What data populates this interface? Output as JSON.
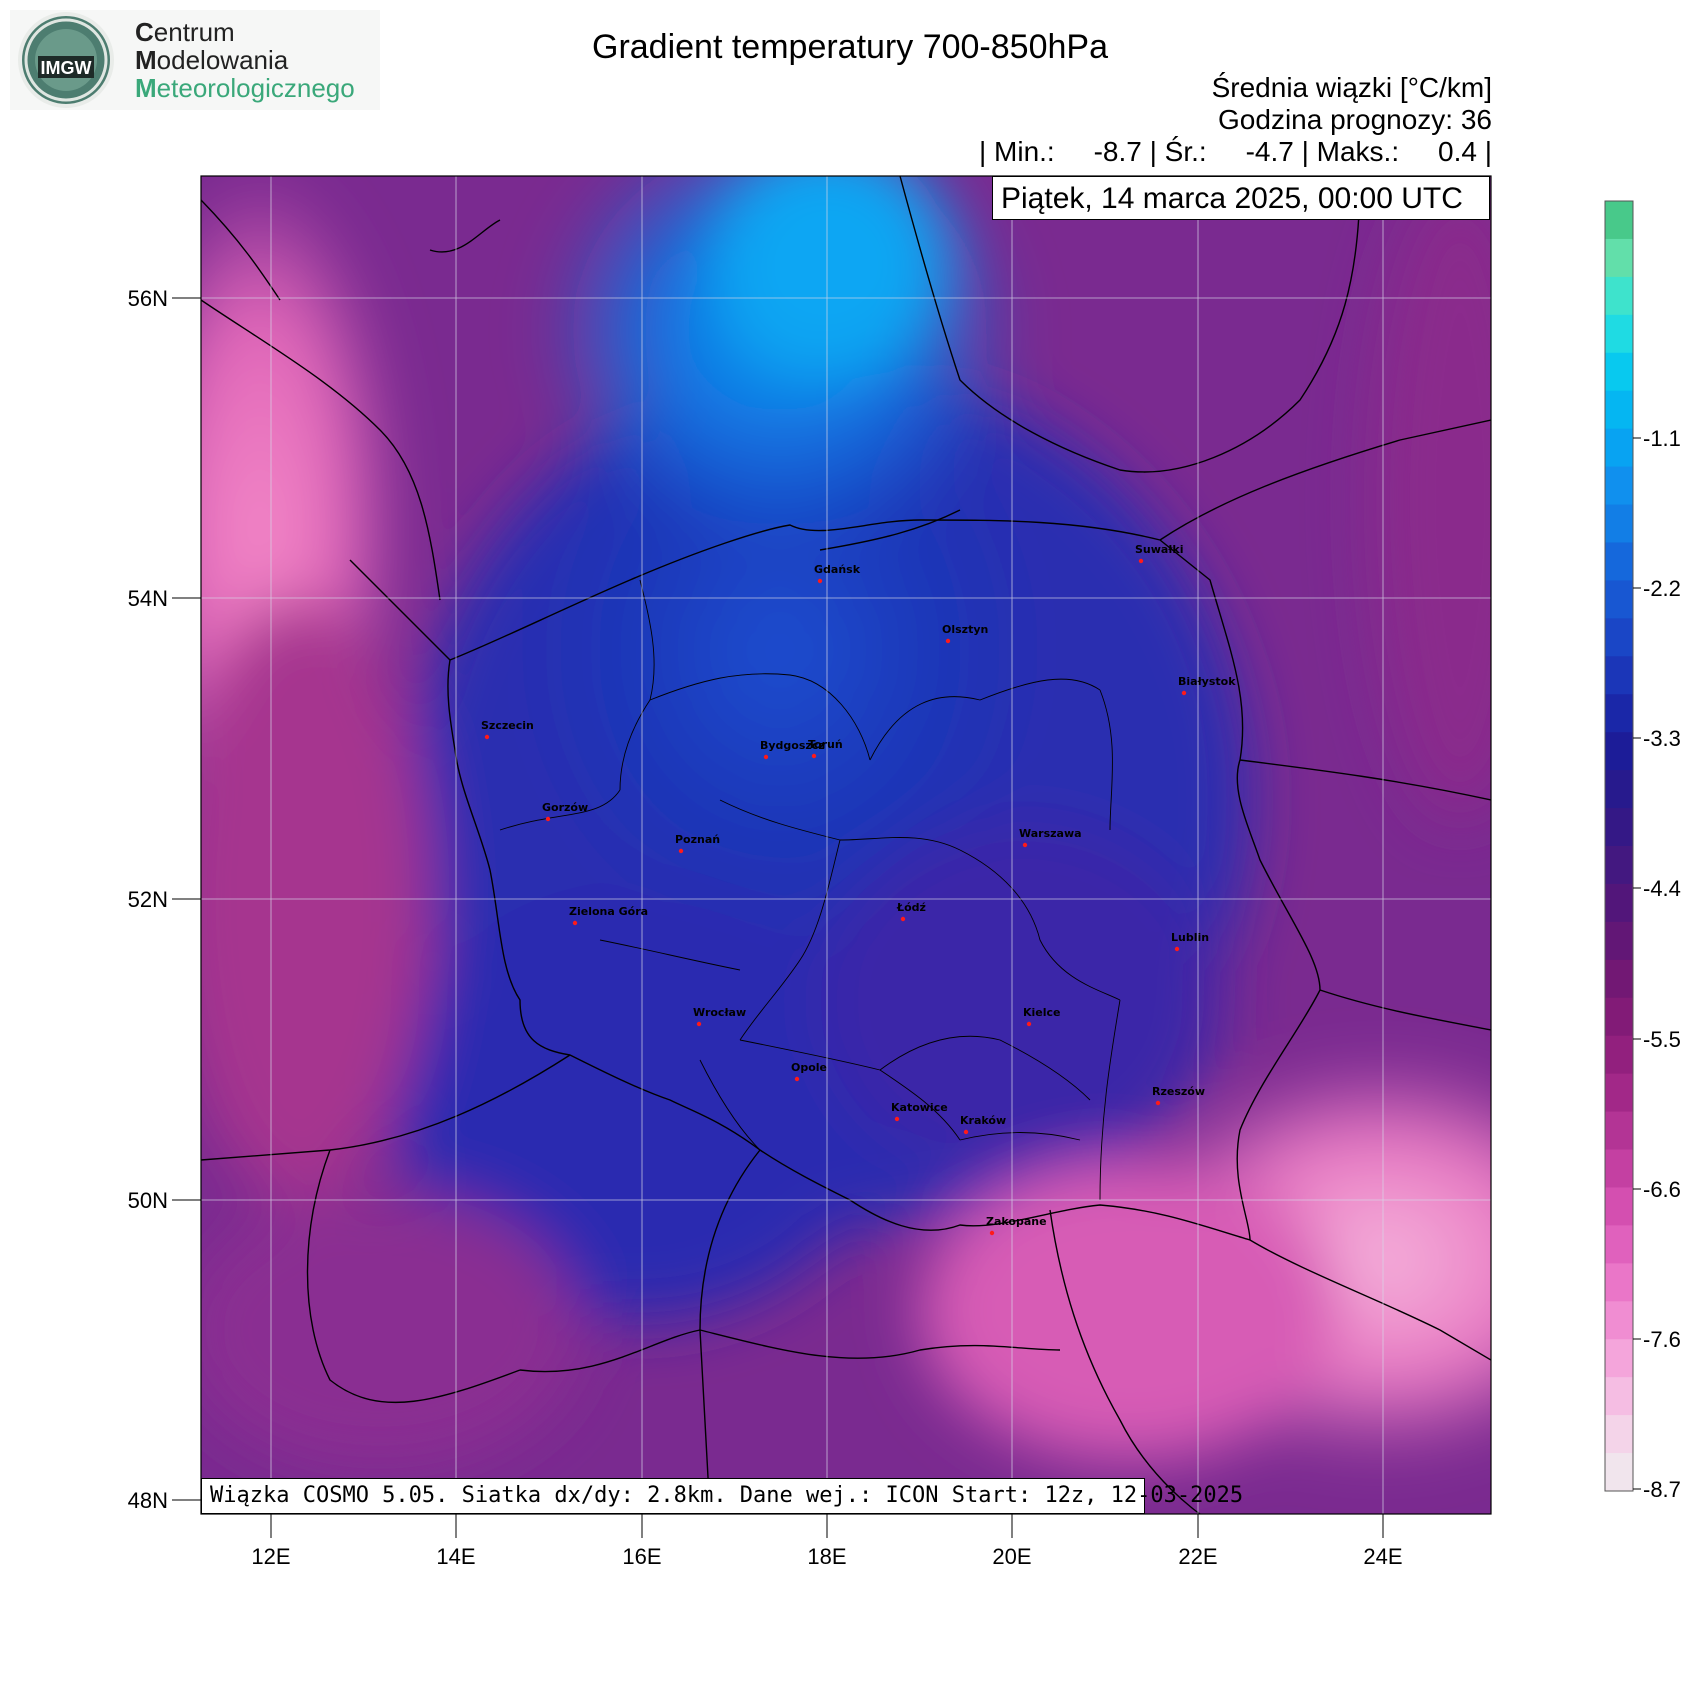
{
  "logo": {
    "badge_text": "IMGW",
    "line1_cap": "C",
    "line1_rest": "entrum",
    "line2_cap": "M",
    "line2_rest": "odelowania",
    "line3_cap": "M",
    "line3_rest": "eteorologicznego"
  },
  "header": {
    "title": "Gradient temperatury 700-850hPa",
    "line1": "Średnia wiązki [°C/km]",
    "line2": "Godzina prognozy: 36",
    "line3": "| Min.:     -8.7 | Śr.:     -4.7 | Maks.:     0.4 |",
    "date": "Piątek, 14 marca 2025, 00:00 UTC"
  },
  "footer": "Wiązka COSMO 5.05. Siatka dx/dy: 2.8km. Dane wej.: ICON Start: 12z, 12-03-2025",
  "axes": {
    "lat_labels": [
      "56N",
      "54N",
      "52N",
      "50N",
      "48N"
    ],
    "lon_labels": [
      "12E",
      "14E",
      "16E",
      "18E",
      "20E",
      "22E",
      "24E"
    ]
  },
  "colorbar": {
    "labels": [
      "-1.1",
      "-2.2",
      "-3.3",
      "-4.4",
      "-5.5",
      "-6.6",
      "-7.6",
      "-8.7"
    ],
    "colors": [
      "#48c98a",
      "#62dfaa",
      "#3ee3cc",
      "#1fdbe3",
      "#08c9ef",
      "#05b6f2",
      "#08a3f2",
      "#1090ee",
      "#127ee6",
      "#1568dc",
      "#1857d2",
      "#1a46c6",
      "#1b36b8",
      "#1a27a8",
      "#1c1c98",
      "#271a8d",
      "#341886",
      "#431880",
      "#52167a",
      "#621776",
      "#721874",
      "#821b77",
      "#92207e",
      "#a22888",
      "#b33495",
      "#c440a2",
      "#d44fb0",
      "#e061bd",
      "#ea76c8",
      "#f08dd2",
      "#f4a5db",
      "#f5bde3",
      "#f4d4e9",
      "#f1e5ed"
    ],
    "colors_meaning": "top to bottom"
  },
  "cities": [
    {
      "name": "Gdańsk"
    },
    {
      "name": "Suwałki"
    },
    {
      "name": "Olsztyn"
    },
    {
      "name": "Białystok"
    },
    {
      "name": "Szczecin"
    },
    {
      "name": "Bydgoszcz"
    },
    {
      "name": "Toruń"
    },
    {
      "name": "Gorzów"
    },
    {
      "name": "Poznań"
    },
    {
      "name": "Warszawa"
    },
    {
      "name": "Łódź"
    },
    {
      "name": "Zielona Góra"
    },
    {
      "name": "Lublin"
    },
    {
      "name": "Wrocław"
    },
    {
      "name": "Kielce"
    },
    {
      "name": "Opole"
    },
    {
      "name": "Rzeszów"
    },
    {
      "name": "Katowice"
    },
    {
      "name": "Kraków"
    },
    {
      "name": "Zakopane"
    }
  ]
}
